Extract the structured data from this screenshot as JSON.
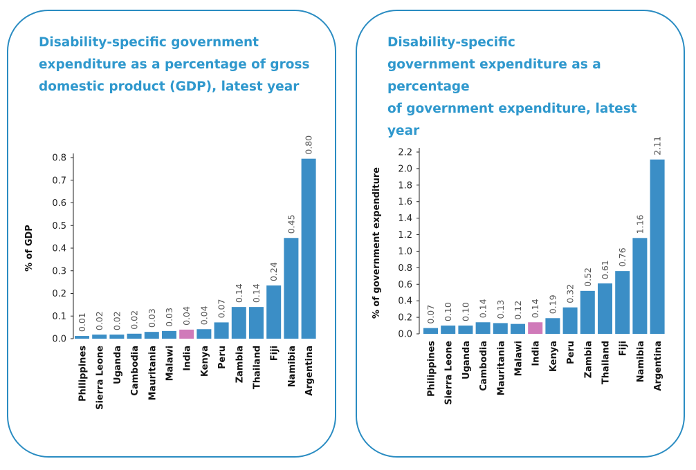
{
  "colors": {
    "bar": "#3b8ec6",
    "highlight": "#d07ab9",
    "title": "#2f98cd",
    "border": "#2a8cc2"
  },
  "chart_data": [
    {
      "type": "bar",
      "title": "Disability-specific government\nexpenditure as a percentage of gross\ndomestic product (GDP), latest year",
      "xlabel": "",
      "ylabel": "% of GDP",
      "ylim": [
        0,
        0.8
      ],
      "yticks": [
        "0.0",
        "0.1",
        "0.2",
        "0.3",
        "0.4",
        "0.5",
        "0.6",
        "0.7",
        "0.8"
      ],
      "grid": false,
      "categories": [
        "Philippines",
        "Sierra Leone",
        "Uganda",
        "Cambodia",
        "Mauritania",
        "Malawi",
        "India",
        "Kenya",
        "Peru",
        "Zambia",
        "Thailand",
        "Fiji",
        "Namibia",
        "Argentina"
      ],
      "values": [
        0.012,
        0.018,
        0.018,
        0.022,
        0.03,
        0.034,
        0.04,
        0.042,
        0.072,
        0.14,
        0.14,
        0.235,
        0.445,
        0.795
      ],
      "value_labels": [
        "0.01",
        "0.02",
        "0.02",
        "0.02",
        "0.03",
        "0.03",
        "0.04",
        "0.04",
        "0.07",
        "0.14",
        "0.14",
        "0.24",
        "0.45",
        "0.80"
      ],
      "highlight": "India"
    },
    {
      "type": "bar",
      "title": "Disability-specific\ngovernment expenditure as a percentage\nof government expenditure, latest year",
      "xlabel": "",
      "ylabel": "% of government expenditure",
      "ylim": [
        0,
        2.2
      ],
      "yticks": [
        "0.0",
        "0.2",
        "0.4",
        "0.6",
        "0.8",
        "1.0",
        "1.2",
        "1.4",
        "1.6",
        "1.8",
        "2.0",
        "2.2"
      ],
      "grid": false,
      "categories": [
        "Philippines",
        "Sierra Leone",
        "Uganda",
        "Cambodia",
        "Mauritania",
        "Malawi",
        "India",
        "Kenya",
        "Peru",
        "Zambia",
        "Thailand",
        "Fiji",
        "Namibia",
        "Argentina"
      ],
      "values": [
        0.07,
        0.1,
        0.1,
        0.14,
        0.13,
        0.12,
        0.14,
        0.19,
        0.32,
        0.52,
        0.61,
        0.76,
        1.16,
        2.11
      ],
      "value_labels": [
        "0.07",
        "0.10",
        "0.10",
        "0.14",
        "0.13",
        "0.12",
        "0.14",
        "0.19",
        "0.32",
        "0.52",
        "0.61",
        "0.76",
        "1.16",
        "2.11"
      ],
      "highlight": "India"
    }
  ]
}
